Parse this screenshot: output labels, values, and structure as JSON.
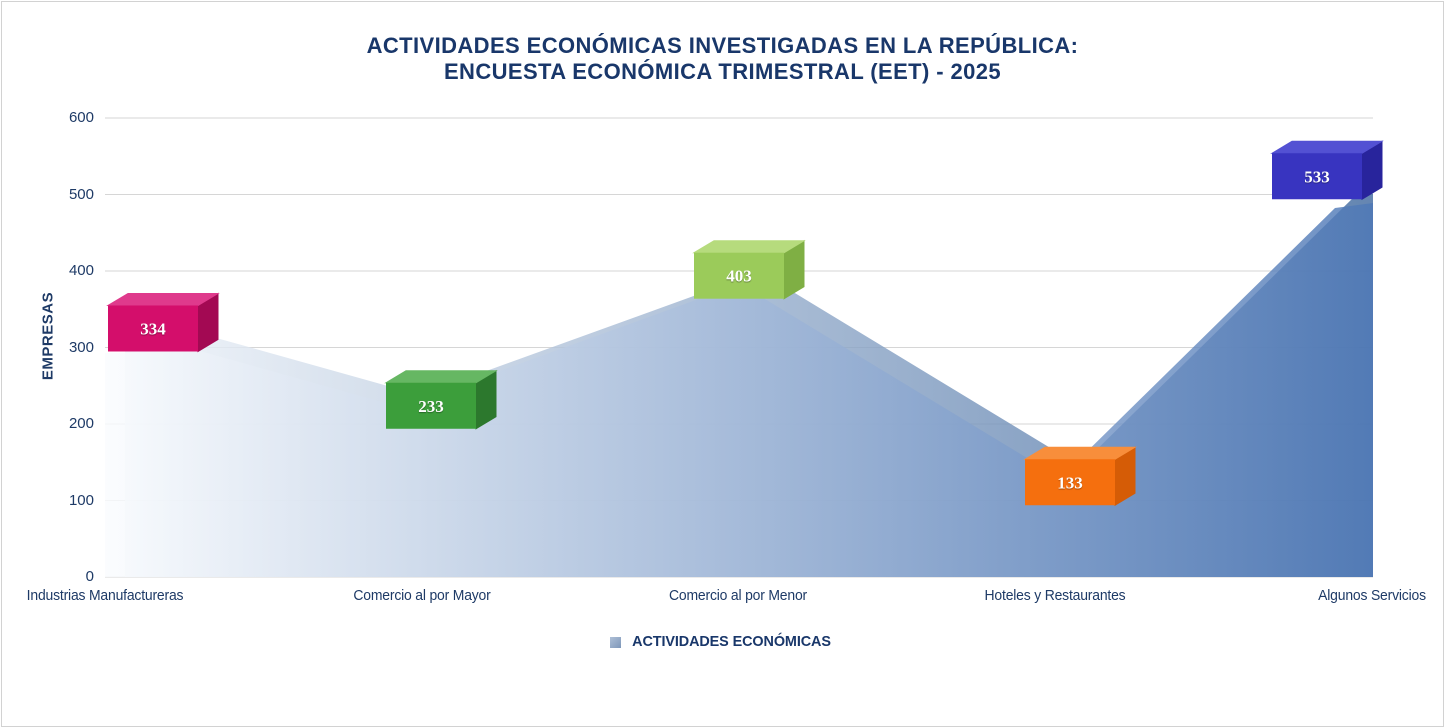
{
  "title": {
    "line1": "ACTIVIDADES ECONÓMICAS INVESTIGADAS EN LA REPÚBLICA:",
    "line2": "ENCUESTA ECONÓMICA TRIMESTRAL (EET) - 2025"
  },
  "y_axis": {
    "title": "EMPRESAS",
    "ticks": [
      "600",
      "500",
      "400",
      "300",
      "200",
      "100",
      "0"
    ]
  },
  "x_axis": {
    "categories": [
      "Industrias Manufactureras",
      "Comercio al por Mayor",
      "Comercio al por Menor",
      "Hoteles y Restaurantes",
      "Algunos Servicios"
    ]
  },
  "legend": {
    "label": "ACTIVIDADES ECONÓMICAS"
  },
  "chart_data": {
    "type": "area",
    "title": "ACTIVIDADES ECONÓMICAS INVESTIGADAS EN LA REPÚBLICA: ENCUESTA ECONÓMICA TRIMESTRAL (EET) - 2025",
    "categories": [
      "Industrias Manufactureras",
      "Comercio al por Mayor",
      "Comercio al por Menor",
      "Hoteles y Restaurantes",
      "Algunos Servicios"
    ],
    "series": [
      {
        "name": "ACTIVIDADES ECONÓMICAS",
        "values": [
          334,
          233,
          403,
          133,
          533
        ]
      }
    ],
    "xlabel": "",
    "ylabel": "EMPRESAS",
    "ylim": [
      0,
      600
    ],
    "ytick_step": 100,
    "grid": true,
    "legend_position": "bottom",
    "style": "3d area with gradient fill and 3d box data labels",
    "area_gradient_left": "#FBFCFE",
    "area_gradient_right": "#6E90C3",
    "label_boxes": [
      {
        "value": 334,
        "front": "#D40E6B",
        "top": "#DF3A8C",
        "side": "#A30953"
      },
      {
        "value": 233,
        "front": "#3C9E3B",
        "top": "#66B763",
        "side": "#2C782D"
      },
      {
        "value": 403,
        "front": "#9BCB5A",
        "top": "#B6DB7D",
        "side": "#7FAF44"
      },
      {
        "value": 133,
        "front": "#F56F0E",
        "top": "#F88E3B",
        "side": "#D55C06"
      },
      {
        "value": 533,
        "front": "#3834C0",
        "top": "#5351D3",
        "side": "#28249C"
      }
    ]
  },
  "colors": {
    "title_text": "#19376A",
    "axis_text": "#1E3A66",
    "gridline": "#D6D6D6",
    "page_border": "#D2D2D2",
    "legend_swatch_from": "#AEBFD6",
    "legend_swatch_to": "#7E97B9"
  }
}
